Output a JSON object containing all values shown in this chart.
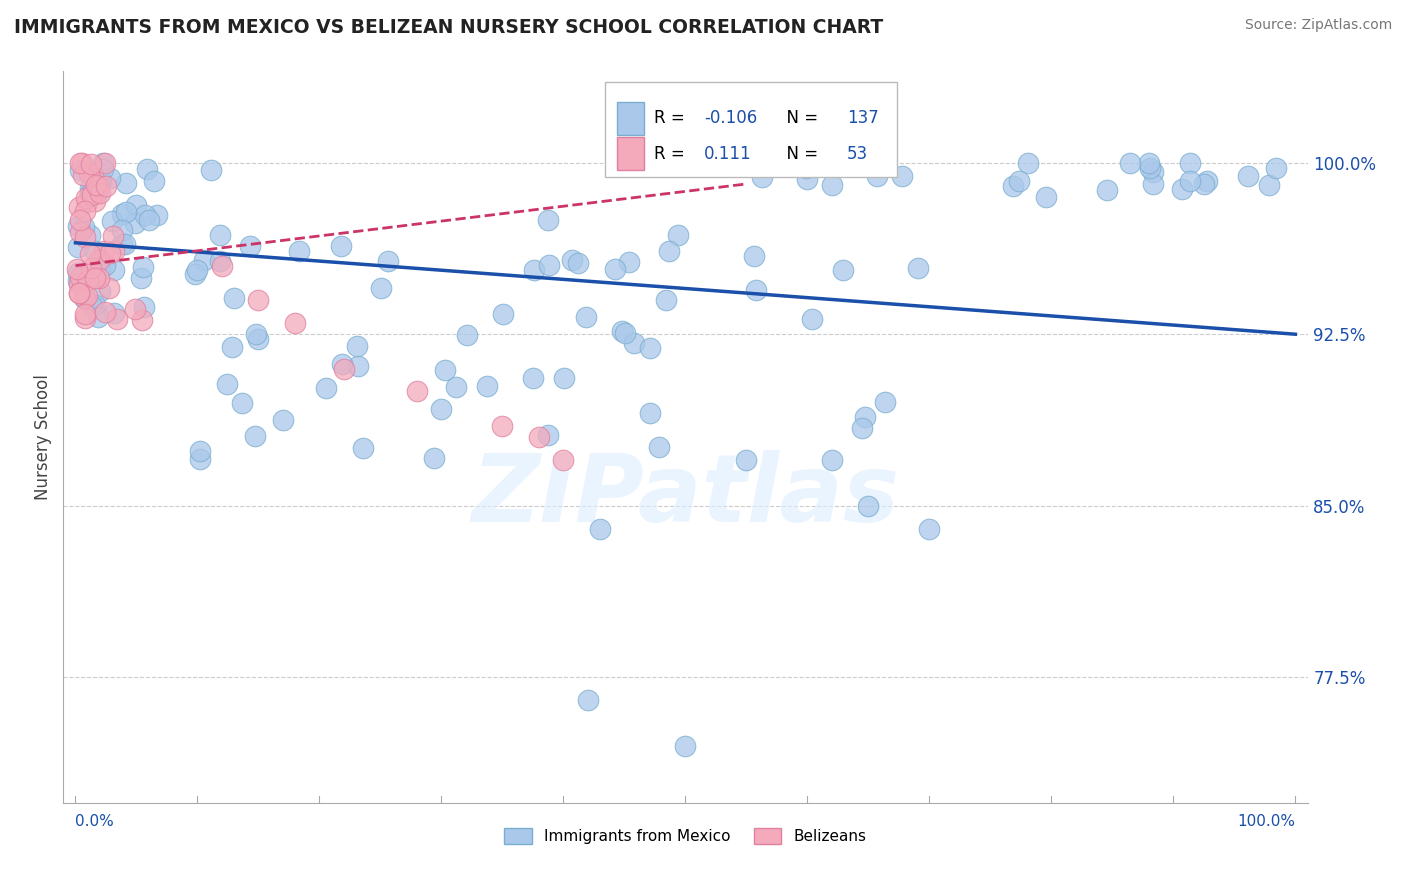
{
  "title": "IMMIGRANTS FROM MEXICO VS BELIZEAN NURSERY SCHOOL CORRELATION CHART",
  "source": "Source: ZipAtlas.com",
  "ylabel": "Nursery School",
  "x_min": 0.0,
  "x_max": 1.0,
  "y_min": 0.72,
  "y_max": 1.04,
  "blue_R": "-0.106",
  "blue_N": "137",
  "pink_R": "0.111",
  "pink_N": "53",
  "blue_color": "#aac8ea",
  "blue_edge_color": "#7aaed0",
  "blue_line_color": "#1a4faa",
  "pink_color": "#f4aabb",
  "pink_edge_color": "#e080a0",
  "pink_line_color": "#cc3366",
  "y_ticks": [
    0.775,
    0.85,
    0.925,
    1.0
  ],
  "y_tick_labels": [
    "77.5%",
    "85.0%",
    "92.5%",
    "100.0%"
  ],
  "watermark": "ZIPatlas",
  "legend_label_blue": "Immigrants from Mexico",
  "legend_label_pink": "Belizeans"
}
